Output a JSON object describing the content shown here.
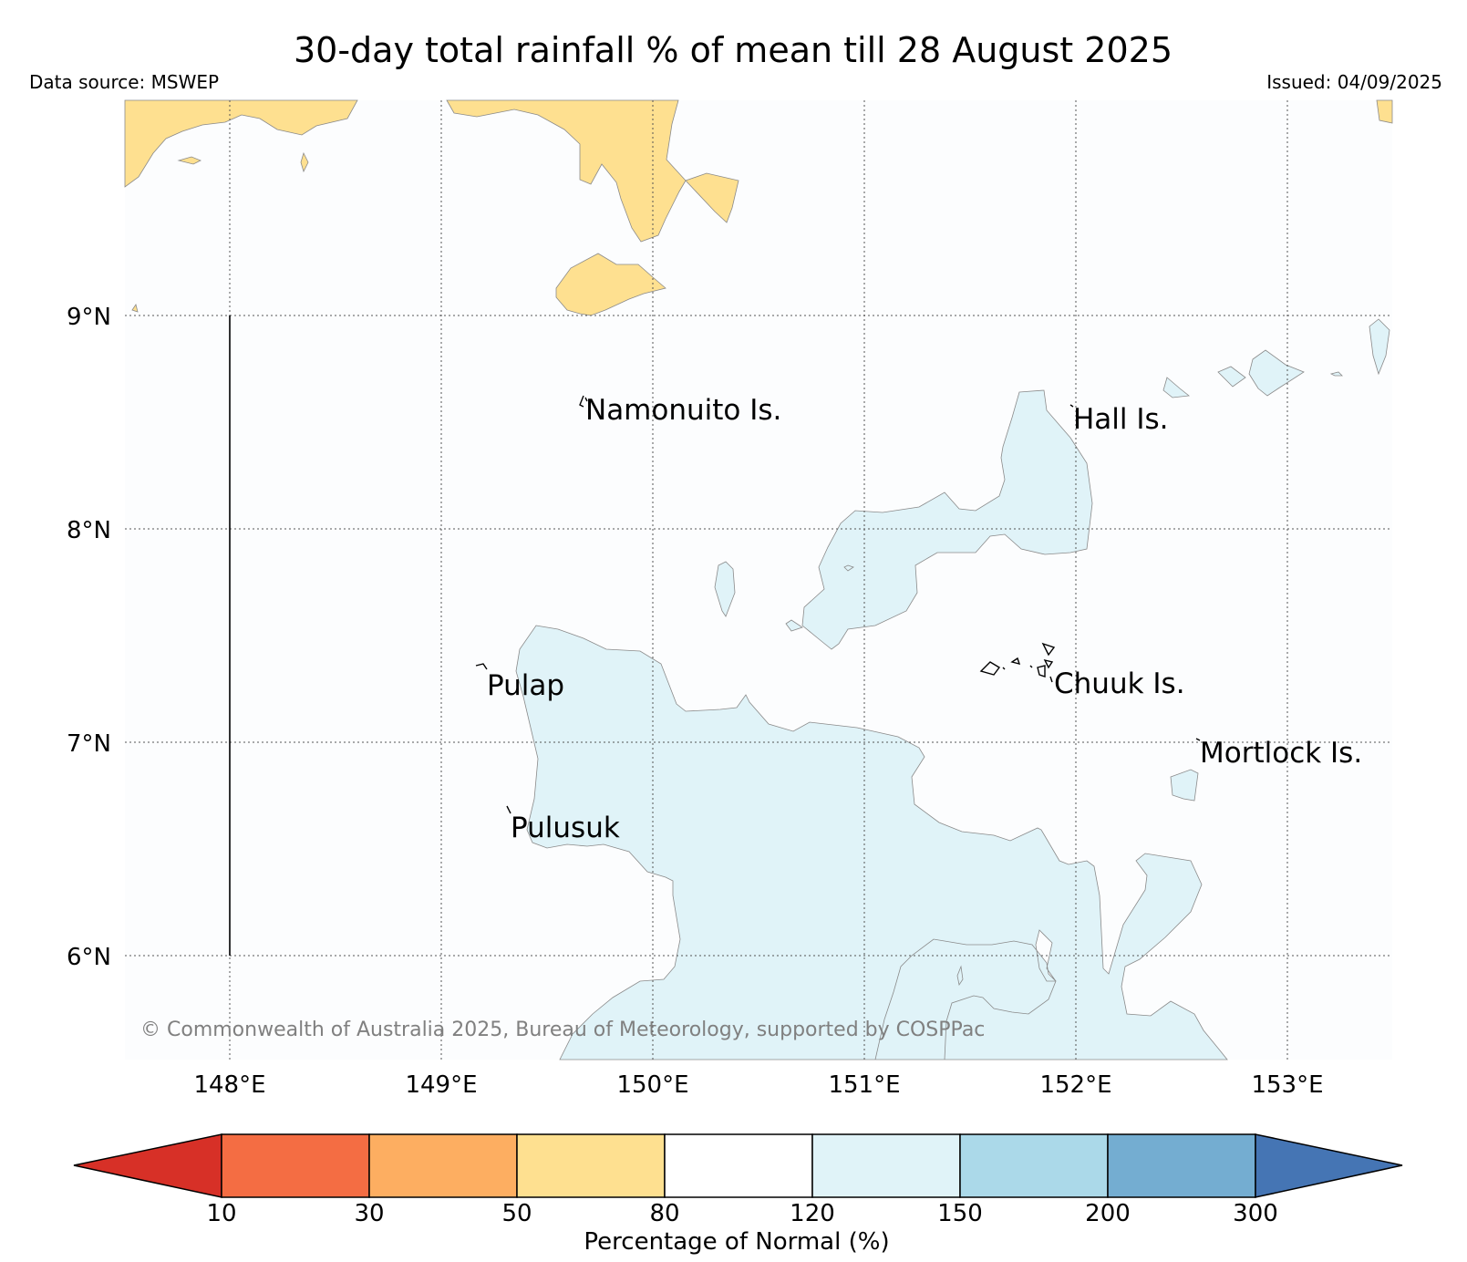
{
  "title": "30-day total rainfall % of mean till 28 August 2025",
  "data_source": "Data source: MSWEP",
  "issued": "Issued: 04/09/2025",
  "copyright": "© Commonwealth of Australia 2025, Bureau of Meteorology, supported by COSPPac",
  "map": {
    "lon_labels": [
      "148°E",
      "149°E",
      "150°E",
      "151°E",
      "152°E",
      "153°E"
    ],
    "lat_labels": [
      "9°N",
      "8°N",
      "7°N",
      "6°N"
    ],
    "place_labels": {
      "namonuito": "Namonuito Is.",
      "hall": "Hall Is.",
      "pulap": "Pulap",
      "chuuk": "Chuuk Is.",
      "mortlock": "Mortlock Is.",
      "pulusuk": "Pulusuk"
    },
    "zone_colors": {
      "dry_50_80": "#fee090",
      "wet_120_150": "#e0f3f8"
    }
  },
  "colorbar": {
    "label": "Percentage of Normal (%)",
    "ticks": [
      "10",
      "30",
      "50",
      "80",
      "120",
      "150",
      "200",
      "300"
    ],
    "colors": {
      "below_10": "#d73027",
      "10_30": "#f46d43",
      "30_50": "#fdae61",
      "50_80": "#fee090",
      "80_120": "#ffffff",
      "120_150": "#e0f3f8",
      "150_200": "#abd9e9",
      "200_300": "#74add1",
      "above_300": "#4575b4"
    }
  }
}
